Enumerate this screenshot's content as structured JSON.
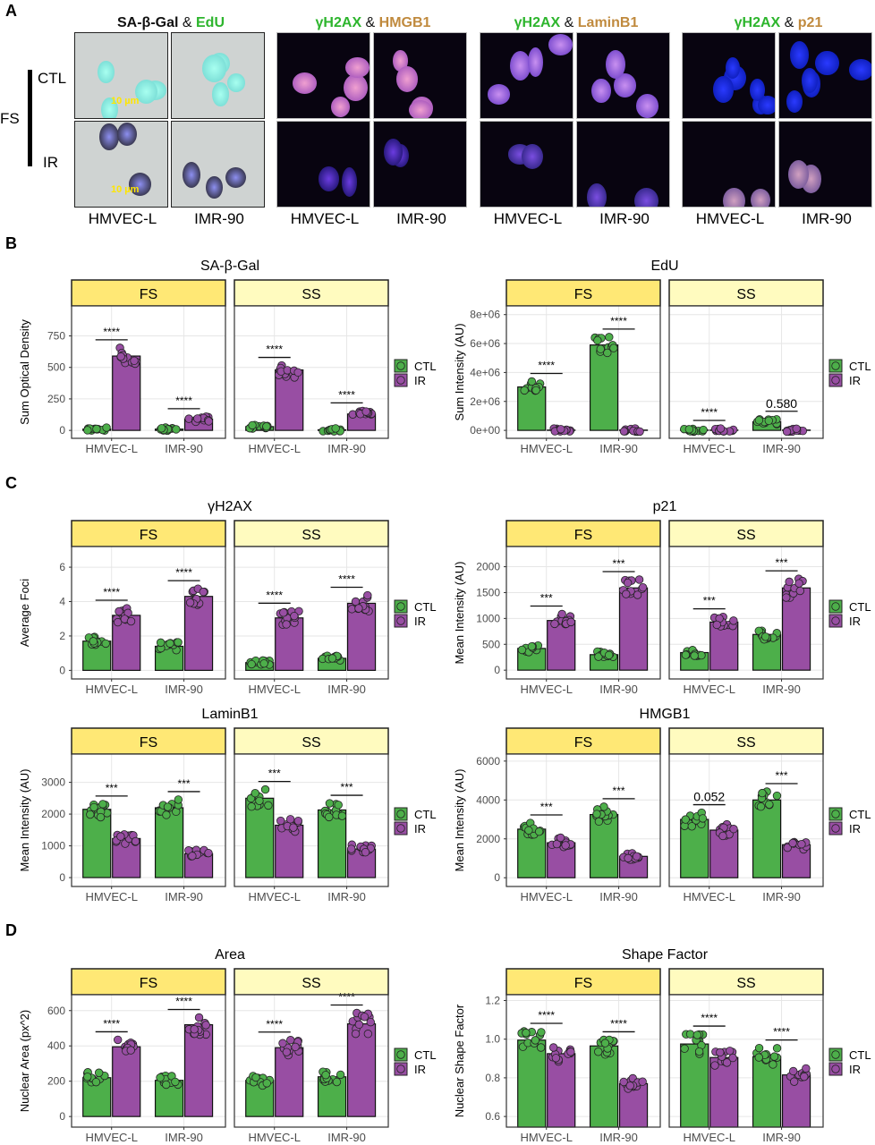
{
  "panel_a": {
    "letter": "A",
    "row_group_label": "FS",
    "row_labels": [
      "CTL",
      "IR"
    ],
    "scale_bar": "10 µm",
    "groups": [
      {
        "title": [
          {
            "text": "SA-β-Gal",
            "color": "#111111"
          },
          {
            "text": " & ",
            "color": "#111111"
          },
          {
            "text": "EdU",
            "color": "#2db52d"
          }
        ],
        "type": "brightfield",
        "columns": [
          "HMVEC-L",
          "IMR-90"
        ]
      },
      {
        "title": [
          {
            "text": "γH2AX",
            "color": "#2db52d"
          },
          {
            "text": " & ",
            "color": "#111111"
          },
          {
            "text": "HMGB1",
            "color": "#c08a3e"
          }
        ],
        "type": "fluorescence",
        "columns": [
          "HMVEC-L",
          "IMR-90"
        ]
      },
      {
        "title": [
          {
            "text": "γH2AX",
            "color": "#2db52d"
          },
          {
            "text": " & ",
            "color": "#111111"
          },
          {
            "text": "LaminB1",
            "color": "#c08a3e"
          }
        ],
        "type": "fluorescence",
        "columns": [
          "HMVEC-L",
          "IMR-90"
        ]
      },
      {
        "title": [
          {
            "text": "γH2AX",
            "color": "#2db52d"
          },
          {
            "text": " & ",
            "color": "#111111"
          },
          {
            "text": "p21",
            "color": "#c08a3e"
          }
        ],
        "type": "fluorescence",
        "columns": [
          "HMVEC-L",
          "IMR-90"
        ]
      }
    ]
  },
  "panel_letters": {
    "b": "B",
    "c": "C",
    "d": "D"
  },
  "colors": {
    "CTL": "#4daf4a",
    "IR": "#984ea3",
    "strip_FS": "#ffe875",
    "strip_SS": "#fffbbf"
  },
  "legend": [
    "CTL",
    "IR"
  ],
  "chart_data": [
    {
      "type": "bar",
      "title": "SA-β-Gal",
      "ylabel": "Sum Optical Density",
      "yticks": [
        0,
        250,
        500,
        750
      ],
      "ytick_labels": [
        "0",
        "250",
        "500",
        "750"
      ],
      "ylim": [
        -63,
        988
      ],
      "categories": [
        "HMVEC-L",
        "IMR-90"
      ],
      "facets": [
        {
          "name": "FS",
          "series": [
            {
              "name": "CTL",
              "values": [
                10,
                10
              ]
            },
            {
              "name": "IR",
              "values": [
                590,
                90
              ]
            }
          ],
          "significance": [
            "****",
            "****"
          ]
        },
        {
          "name": "SS",
          "series": [
            {
              "name": "CTL",
              "values": [
                30,
                5
              ]
            },
            {
              "name": "IR",
              "values": [
                480,
                130
              ]
            }
          ],
          "significance": [
            "****",
            "****"
          ]
        }
      ]
    },
    {
      "type": "bar",
      "title": "EdU",
      "ylabel": "Sum Intensity (AU)",
      "yticks": [
        0,
        2000000,
        4000000,
        6000000,
        8000000
      ],
      "ytick_labels": [
        "0e+00",
        "2e+06",
        "4e+06",
        "6e+06",
        "8e+06"
      ],
      "ylim": [
        -550000,
        8600000
      ],
      "categories": [
        "HMVEC-L",
        "IMR-90"
      ],
      "facets": [
        {
          "name": "FS",
          "series": [
            {
              "name": "CTL",
              "values": [
                3000000,
                5900000
              ]
            },
            {
              "name": "IR",
              "values": [
                20000,
                20000
              ]
            }
          ],
          "significance": [
            "****",
            "****"
          ]
        },
        {
          "name": "SS",
          "series": [
            {
              "name": "CTL",
              "values": [
                20000,
                600000
              ]
            },
            {
              "name": "IR",
              "values": [
                20000,
                20000
              ]
            }
          ],
          "significance": [
            "****",
            "0.580"
          ]
        }
      ]
    },
    {
      "type": "bar",
      "title": "γH2AX",
      "ylabel": "Average Foci",
      "yticks": [
        0,
        2,
        4,
        6
      ],
      "ytick_labels": [
        "0",
        "2",
        "4",
        "6"
      ],
      "ylim": [
        -0.5,
        7.2
      ],
      "categories": [
        "HMVEC-L",
        "IMR-90"
      ],
      "facets": [
        {
          "name": "FS",
          "series": [
            {
              "name": "CTL",
              "values": [
                1.7,
                1.4
              ]
            },
            {
              "name": "IR",
              "values": [
                3.2,
                4.3
              ]
            }
          ],
          "significance": [
            "****",
            "****"
          ]
        },
        {
          "name": "SS",
          "series": [
            {
              "name": "CTL",
              "values": [
                0.45,
                0.7
              ]
            },
            {
              "name": "IR",
              "values": [
                3.05,
                3.9
              ]
            }
          ],
          "significance": [
            "****",
            "****"
          ]
        }
      ]
    },
    {
      "type": "bar",
      "title": "p21",
      "ylabel": "Mean Intensity (AU)",
      "yticks": [
        0,
        500,
        1000,
        1500,
        2000
      ],
      "ytick_labels": [
        "0",
        "500",
        "1000",
        "1500",
        "2000"
      ],
      "ylim": [
        -170,
        2390
      ],
      "categories": [
        "HMVEC-L",
        "IMR-90"
      ],
      "facets": [
        {
          "name": "FS",
          "series": [
            {
              "name": "CTL",
              "values": [
                420,
                300
              ]
            },
            {
              "name": "IR",
              "values": [
                960,
                1590
              ]
            }
          ],
          "significance": [
            "***",
            "***"
          ]
        },
        {
          "name": "SS",
          "series": [
            {
              "name": "CTL",
              "values": [
                340,
                690
              ]
            },
            {
              "name": "IR",
              "values": [
                930,
                1590
              ]
            }
          ],
          "significance": [
            "***",
            "***"
          ]
        }
      ]
    },
    {
      "type": "bar",
      "title": "LaminB1",
      "ylabel": "Mean Intensity (AU)",
      "yticks": [
        0,
        1000,
        2000,
        3000
      ],
      "ytick_labels": [
        "0",
        "1000",
        "2000",
        "3000"
      ],
      "ylim": [
        -280,
        3890
      ],
      "categories": [
        "HMVEC-L",
        "IMR-90"
      ],
      "facets": [
        {
          "name": "FS",
          "series": [
            {
              "name": "CTL",
              "values": [
                2150,
                2200
              ]
            },
            {
              "name": "IR",
              "values": [
                1230,
                750
              ]
            }
          ],
          "significance": [
            "***",
            "***"
          ]
        },
        {
          "name": "SS",
          "series": [
            {
              "name": "CTL",
              "values": [
                2500,
                2130
              ]
            },
            {
              "name": "IR",
              "values": [
                1650,
                900
              ]
            }
          ],
          "significance": [
            "***",
            "***"
          ]
        }
      ]
    },
    {
      "type": "bar",
      "title": "HMGB1",
      "ylabel": "Mean Intensity (AU)",
      "yticks": [
        0,
        2000,
        4000,
        6000
      ],
      "ytick_labels": [
        "0",
        "2000",
        "4000",
        "6000"
      ],
      "ylim": [
        -450,
        6360
      ],
      "categories": [
        "HMVEC-L",
        "IMR-90"
      ],
      "facets": [
        {
          "name": "FS",
          "series": [
            {
              "name": "CTL",
              "values": [
                2500,
                3250
              ]
            },
            {
              "name": "IR",
              "values": [
                1800,
                1100
              ]
            }
          ],
          "significance": [
            "***",
            "***"
          ]
        },
        {
          "name": "SS",
          "series": [
            {
              "name": "CTL",
              "values": [
                3000,
                4000
              ]
            },
            {
              "name": "IR",
              "values": [
                2450,
                1700
              ]
            }
          ],
          "significance": [
            "0.052",
            "***"
          ]
        }
      ]
    },
    {
      "type": "bar",
      "title": "Area",
      "ylabel": "Nuclear Area (px^2)",
      "yticks": [
        0,
        200,
        400,
        600
      ],
      "ytick_labels": [
        "0",
        "200",
        "400",
        "600"
      ],
      "ylim": [
        -60,
        690
      ],
      "categories": [
        "HMVEC-L",
        "IMR-90"
      ],
      "facets": [
        {
          "name": "FS",
          "series": [
            {
              "name": "CTL",
              "values": [
                220,
                205
              ]
            },
            {
              "name": "IR",
              "values": [
                395,
                520
              ]
            }
          ],
          "significance": [
            "****",
            "****"
          ]
        },
        {
          "name": "SS",
          "series": [
            {
              "name": "CTL",
              "values": [
                205,
                225
              ]
            },
            {
              "name": "IR",
              "values": [
                390,
                525
              ]
            }
          ],
          "significance": [
            "****",
            "****"
          ]
        }
      ]
    },
    {
      "type": "bar",
      "title": "Shape Factor",
      "ylabel": "Nuclear Shape Factor",
      "yticks": [
        0.6,
        0.8,
        1.0,
        1.2
      ],
      "ytick_labels": [
        "0.6",
        "0.8",
        "1.0",
        "1.2"
      ],
      "ylim": [
        0.545,
        1.23
      ],
      "categories": [
        "HMVEC-L",
        "IMR-90"
      ],
      "facets": [
        {
          "name": "FS",
          "series": [
            {
              "name": "CTL",
              "values": [
                0.995,
                0.965
              ]
            },
            {
              "name": "IR",
              "values": [
                0.925,
                0.77
              ]
            }
          ],
          "significance": [
            "****",
            "****"
          ]
        },
        {
          "name": "SS",
          "series": [
            {
              "name": "CTL",
              "values": [
                0.975,
                0.91
              ]
            },
            {
              "name": "IR",
              "values": [
                0.905,
                0.815
              ]
            }
          ],
          "significance": [
            "****",
            "****"
          ]
        }
      ]
    }
  ]
}
